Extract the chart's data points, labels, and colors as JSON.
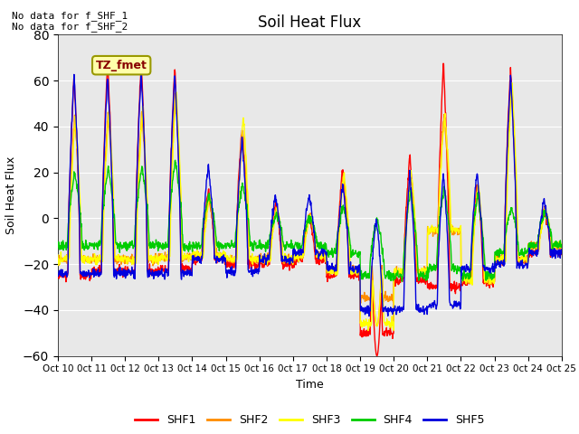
{
  "title": "Soil Heat Flux",
  "xlabel": "Time",
  "ylabel": "Soil Heat Flux",
  "ylim": [
    -60,
    80
  ],
  "yticks": [
    -60,
    -40,
    -20,
    0,
    20,
    40,
    60,
    80
  ],
  "no_data_text1": "No data for f_SHF_1",
  "no_data_text2": "No data for f_SHF_2",
  "tz_label": "TZ_fmet",
  "colors": {
    "SHF1": "#FF0000",
    "SHF2": "#FF8C00",
    "SHF3": "#FFFF00",
    "SHF4": "#00CC00",
    "SHF5": "#0000DD"
  },
  "background_color": "#E8E8E8",
  "fig_background": "#FFFFFF",
  "n_points": 1500,
  "n_days": 15,
  "x_tick_labels": [
    "Oct 10",
    "0ct 11",
    "0ct 12",
    "0ct 13",
    "0ct 14",
    "0ct 15",
    "0ct 16",
    "0ct 17",
    "0ct 18",
    "0ct 19",
    "0ct 20",
    "0ct 21",
    "0ct 22",
    "0ct 23",
    "0ct 24",
    "0ct 25"
  ]
}
